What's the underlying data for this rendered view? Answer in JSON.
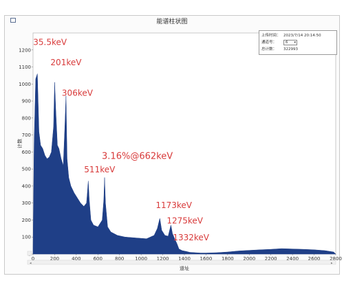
{
  "window": {
    "title": "能谱柱状图"
  },
  "info": {
    "upload_time_label": "上传时间：",
    "upload_time_value": "2023/7/14 20:14:50",
    "channel_label": "通道号：",
    "channel_value": "6",
    "total_count_label": "总计数：",
    "total_count_value": "322993"
  },
  "chart_data": {
    "type": "area",
    "title": "",
    "xlabel": "道址",
    "ylabel": "计数",
    "xlim": [
      0,
      2800
    ],
    "ylim": [
      0,
      1300
    ],
    "x_ticks": [
      0,
      200,
      400,
      600,
      800,
      1000,
      1200,
      1400,
      1600,
      1800,
      2000,
      2200,
      2400,
      2600,
      2800
    ],
    "y_ticks": [
      0,
      100,
      200,
      300,
      400,
      500,
      600,
      700,
      800,
      900,
      1000,
      1100,
      1200
    ],
    "color": "#1f3f87",
    "series": [
      {
        "x": [
          0,
          10,
          25,
          40,
          55,
          70,
          90,
          110,
          130,
          150,
          170,
          190,
          200,
          210,
          225,
          240,
          260,
          280,
          295,
          305,
          315,
          330,
          350,
          380,
          410,
          440,
          470,
          495,
          505,
          511,
          520,
          535,
          560,
          600,
          640,
          655,
          662,
          670,
          690,
          720,
          780,
          850,
          950,
          1050,
          1120,
          1150,
          1173,
          1190,
          1220,
          1250,
          1275,
          1290,
          1310,
          1332,
          1350,
          1380,
          1420,
          1450,
          1500,
          1550,
          1600,
          1700,
          1800,
          1900,
          2000,
          2100,
          2200,
          2300,
          2400,
          2500,
          2600,
          2700,
          2780,
          2800
        ],
        "values": [
          40,
          650,
          1030,
          1060,
          720,
          640,
          620,
          580,
          560,
          570,
          600,
          750,
          1010,
          850,
          640,
          620,
          560,
          520,
          760,
          930,
          560,
          450,
          400,
          360,
          330,
          300,
          280,
          300,
          380,
          430,
          320,
          200,
          170,
          160,
          200,
          320,
          450,
          300,
          160,
          130,
          110,
          100,
          95,
          90,
          110,
          150,
          210,
          140,
          110,
          105,
          170,
          120,
          90,
          60,
          30,
          20,
          15,
          10,
          8,
          6,
          6,
          8,
          12,
          18,
          22,
          25,
          28,
          32,
          30,
          28,
          25,
          20,
          12,
          0
        ]
      }
    ],
    "annotations": [
      {
        "text": "35.5keV",
        "x": 40,
        "y": 1230
      },
      {
        "text": "201keV",
        "x": 200,
        "y": 1110
      },
      {
        "text": "306keV",
        "x": 305,
        "y": 930
      },
      {
        "text": "511keV",
        "x": 511,
        "y": 480
      },
      {
        "text": "3.16%@662keV",
        "x": 662,
        "y": 560
      },
      {
        "text": "1173keV",
        "x": 1173,
        "y": 270
      },
      {
        "text": "1275keV",
        "x": 1275,
        "y": 180
      },
      {
        "text": "1332keV",
        "x": 1332,
        "y": 80
      }
    ]
  }
}
